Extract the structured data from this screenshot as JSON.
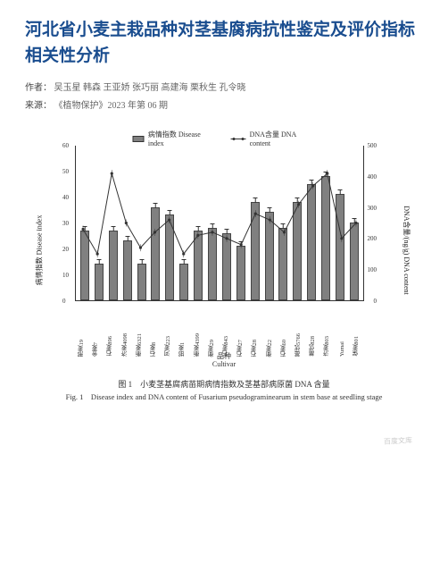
{
  "title": "河北省小麦主栽品种对茎基腐病抗性鉴定及评价指标相关性分析",
  "authors_label": "作者：",
  "authors": "吴玉星 韩森 王亚娇 张巧丽 高建海 栗秋生 孔令晓",
  "source_label": "来源：",
  "source": "《植物保护》2023 年第 06 期",
  "chart": {
    "type": "bar+line",
    "legend_bar": "病情指数 Disease index",
    "legend_line": "DNA含量 DNA content",
    "ylabel_left": "病情指数\nDisease index",
    "ylabel_right": "DNA含量/(ng/g)\nDNA content",
    "xlabel_cn": "品种",
    "xlabel_en": "Cultivar",
    "y_left": {
      "min": 0,
      "max": 60,
      "step": 10
    },
    "y_right": {
      "min": 0,
      "max": 500,
      "step": 100
    },
    "bar_color": "#808080",
    "line_color": "#333333",
    "background_color": "#ffffff",
    "categories": [
      "邢麦19",
      "金麦7",
      "石麦896",
      "济麦4098",
      "衡麦6321",
      "石麦8",
      "河麦223",
      "邯麦1",
      "衡麦4399",
      "衡麦29",
      "石麦843",
      "石麦27",
      "石麦28",
      "衡麦22",
      "石麦60",
      "藁优5766",
      "藁优828",
      "济麦803",
      "Yumai",
      "保麦801"
    ],
    "bar_values": [
      27,
      14,
      27,
      23,
      14,
      36,
      33,
      14,
      27,
      28,
      26,
      21,
      38,
      34,
      28,
      38,
      45,
      48,
      41,
      30
    ],
    "bar_errors": [
      4,
      3,
      4,
      3,
      3,
      5,
      4,
      3,
      4,
      4,
      4,
      3,
      5,
      4,
      4,
      5,
      5,
      5,
      5,
      4
    ],
    "line_values": [
      230,
      150,
      410,
      250,
      170,
      220,
      260,
      150,
      210,
      220,
      200,
      180,
      280,
      260,
      220,
      310,
      370,
      410,
      200,
      250
    ]
  },
  "caption_cn": "图 1　小麦茎基腐病苗期病情指数及茎基部病原菌 DNA 含量",
  "caption_en": "Fig. 1　Disease index and DNA content of Fusarium pseudograminearum in stem base at seedling stage",
  "watermark": "百度文库"
}
